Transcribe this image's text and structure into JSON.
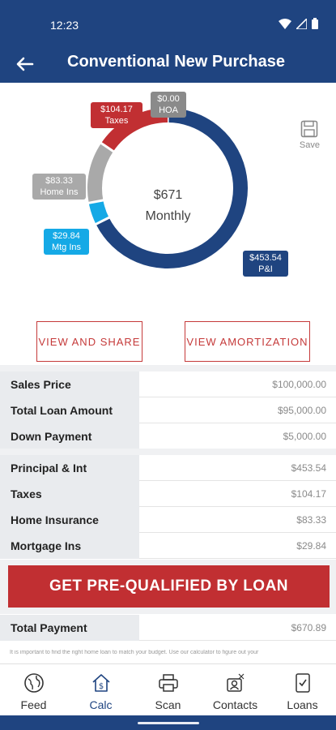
{
  "status_bar": {
    "time": "12:23"
  },
  "header": {
    "title": "Conventional New Purchase"
  },
  "save": {
    "label": "Save"
  },
  "donut": {
    "center_amount": "$671",
    "center_label": "Monthly",
    "segments": [
      {
        "name": "P&I",
        "value": 453.54,
        "color": "#1f4480"
      },
      {
        "name": "Mtg Ins",
        "value": 29.84,
        "color": "#15a9e6"
      },
      {
        "name": "Home Ins",
        "value": 83.33,
        "color": "#a9a9a9"
      },
      {
        "name": "Taxes",
        "value": 104.17,
        "color": "#c12f32"
      },
      {
        "name": "HOA",
        "value": 0.0,
        "color": "#8a8a8a"
      }
    ],
    "labels": {
      "pi": {
        "amount": "$453.54",
        "name": "P&I"
      },
      "mtg": {
        "amount": "$29.84",
        "name": "Mtg Ins"
      },
      "home": {
        "amount": "$83.33",
        "name": "Home Ins"
      },
      "taxes": {
        "amount": "$104.17",
        "name": "Taxes"
      },
      "hoa": {
        "amount": "$0.00",
        "name": "HOA"
      }
    }
  },
  "buttons": {
    "view_share": "VIEW AND SHARE",
    "view_amort": "VIEW AMORTIZATION"
  },
  "loan_rows": [
    {
      "label": "Sales Price",
      "value": "$100,000.00"
    },
    {
      "label": "Total Loan Amount",
      "value": "$95,000.00"
    },
    {
      "label": "Down Payment",
      "value": "$5,000.00"
    }
  ],
  "payment_rows": [
    {
      "label": "Principal & Int",
      "value": "$453.54"
    },
    {
      "label": "Taxes",
      "value": "$104.17"
    },
    {
      "label": "Home Insurance",
      "value": "$83.33"
    },
    {
      "label": "Mortgage Ins",
      "value": "$29.84"
    }
  ],
  "cta": {
    "label": "GET PRE-QUALIFIED BY LOAN"
  },
  "total": {
    "label": "Total Payment",
    "value": "$670.89"
  },
  "disclaimer": "It is important to find the right home loan to match your budget. Use our calculator to figure out your",
  "nav": [
    {
      "label": "Feed",
      "icon": "globe-icon"
    },
    {
      "label": "Calc",
      "icon": "calculator-house-icon"
    },
    {
      "label": "Scan",
      "icon": "printer-icon"
    },
    {
      "label": "Contacts",
      "icon": "contacts-icon"
    },
    {
      "label": "Loans",
      "icon": "document-check-icon"
    }
  ]
}
